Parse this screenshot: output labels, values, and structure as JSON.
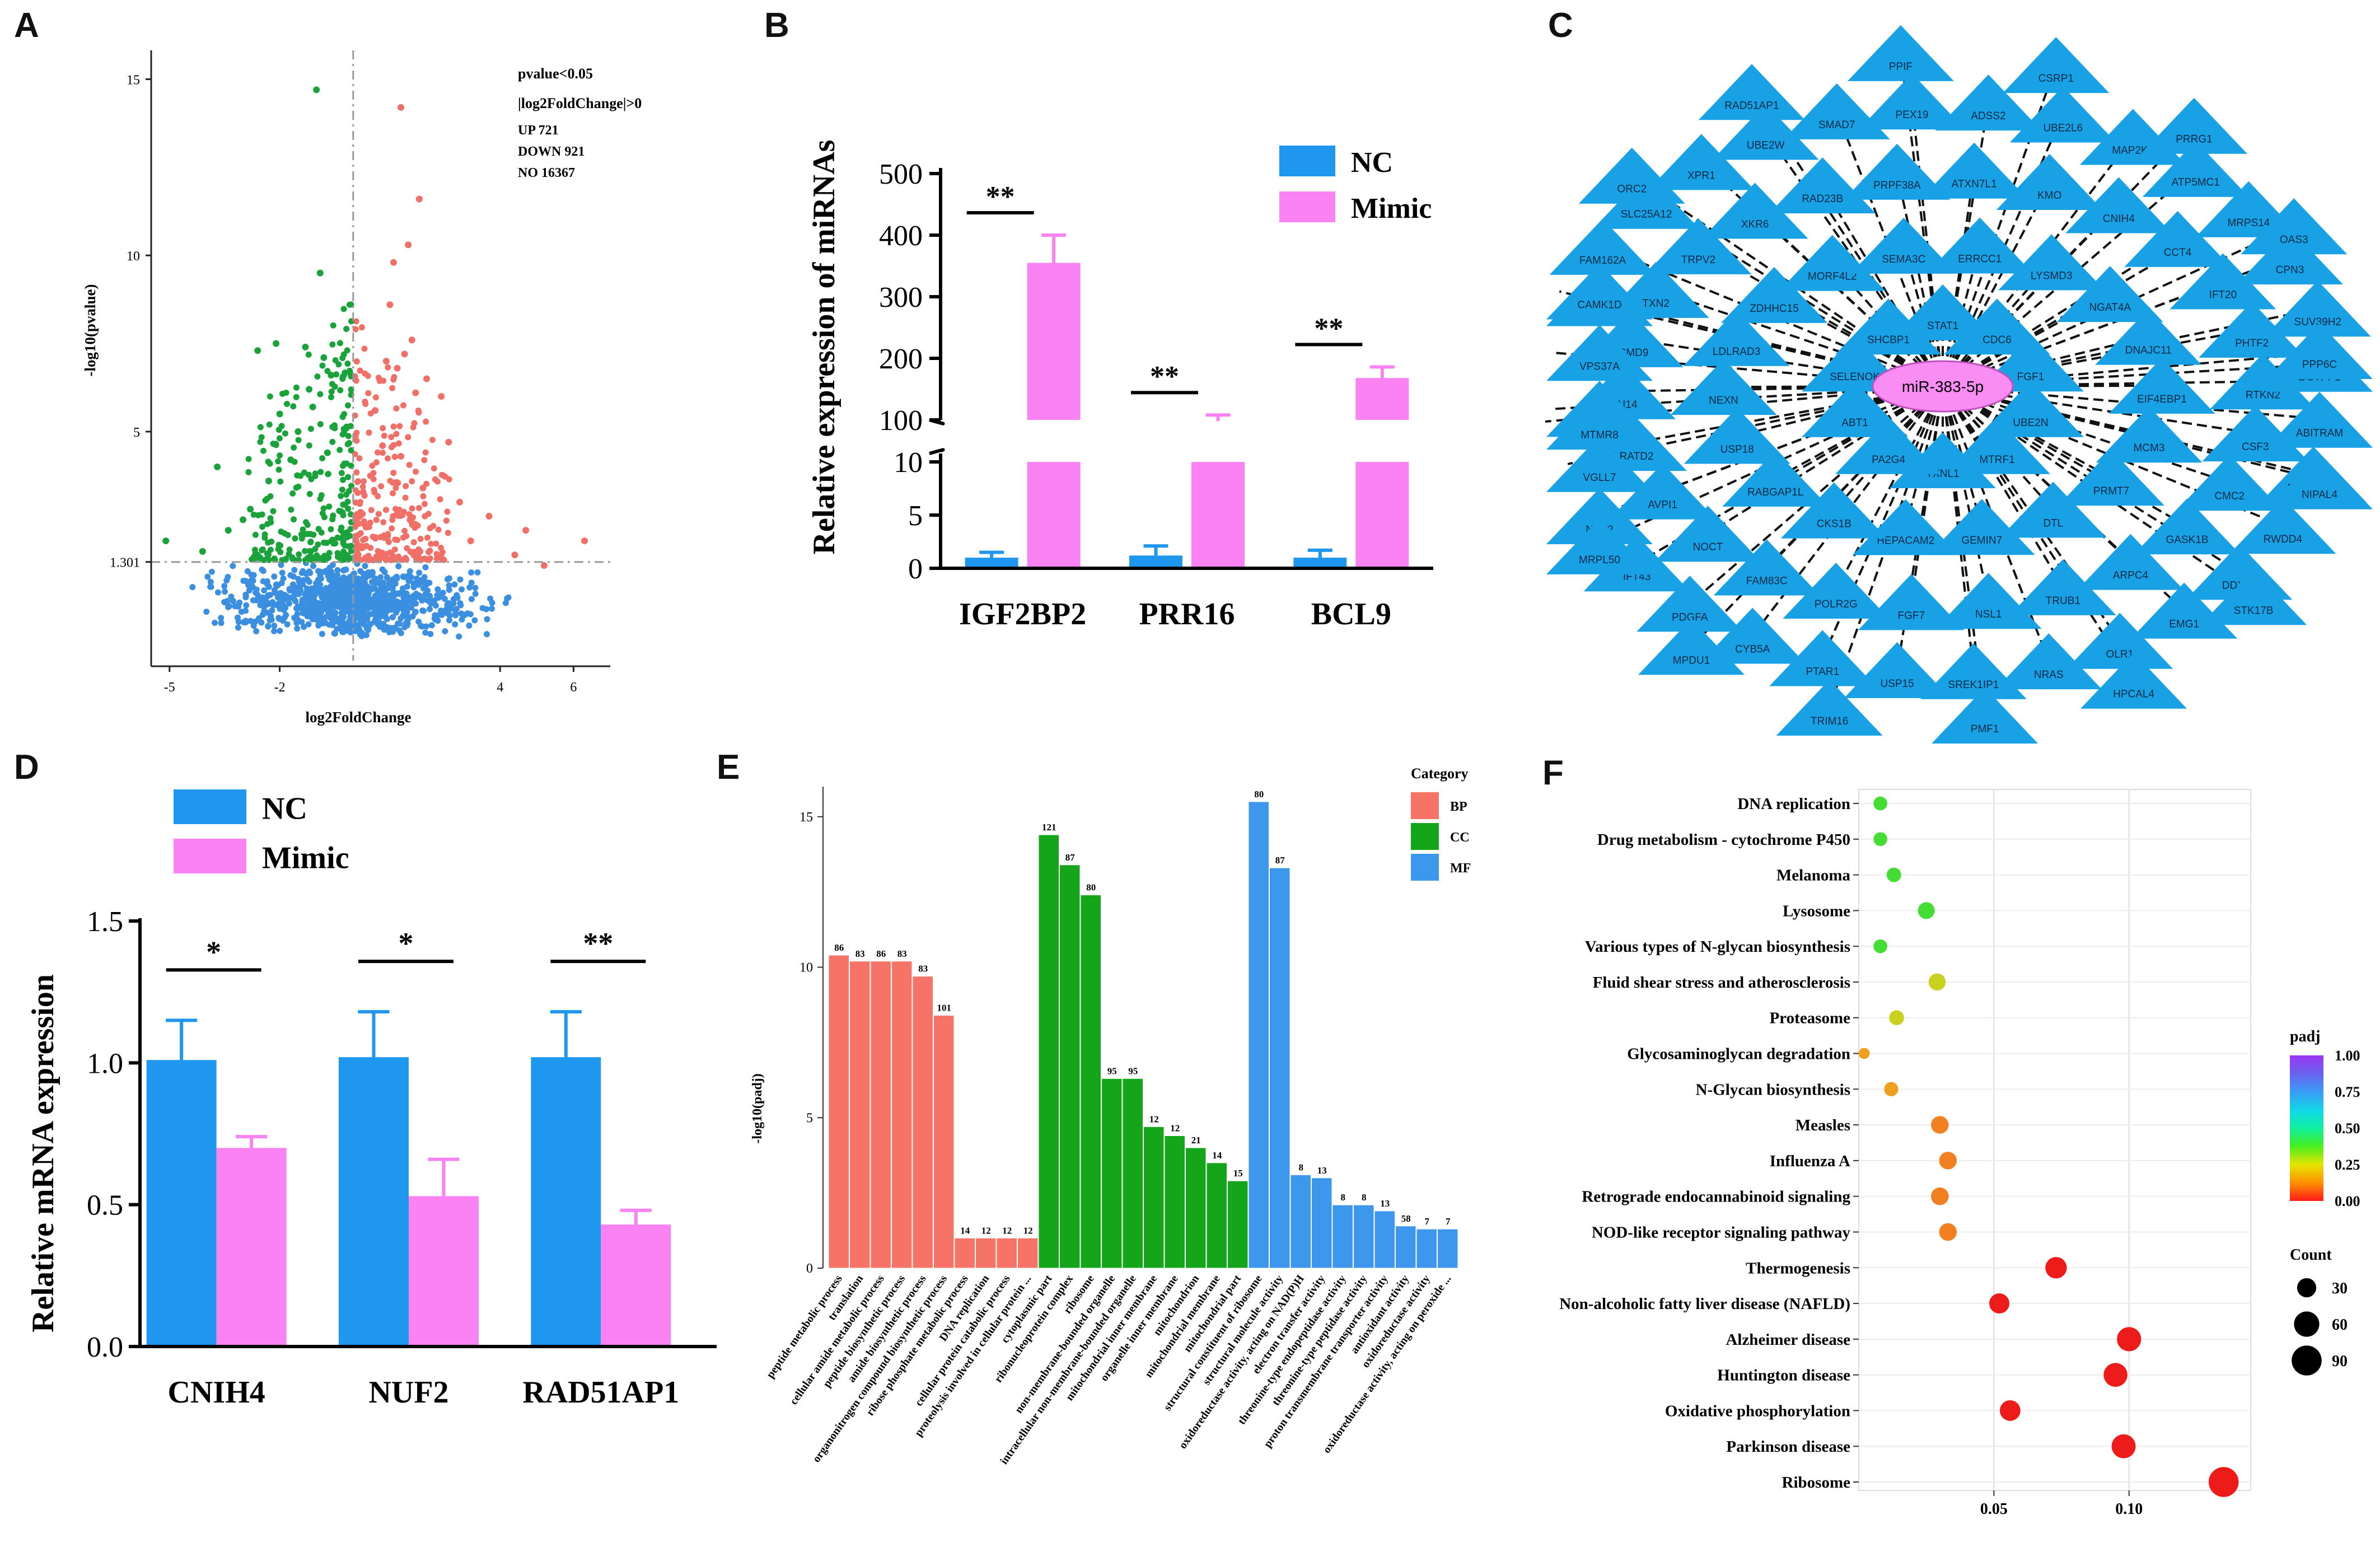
{
  "panels": {
    "a": "A",
    "b": "B",
    "c": "C",
    "d": "D",
    "e": "E",
    "f": "F"
  },
  "chart_data": [
    {
      "id": "A",
      "type": "scatter",
      "title": "",
      "xlabel": "log2FoldChange",
      "ylabel": "-log10(pvalue)",
      "xlim": [
        -5.5,
        7
      ],
      "ylim": [
        -1.5,
        15.5
      ],
      "xticks": [
        "-5",
        "-2",
        "4",
        "6"
      ],
      "xtick_values": [
        -5,
        -2,
        4,
        6
      ],
      "yticks": [
        "15",
        "10",
        "5",
        "1.301"
      ],
      "ytick_values": [
        15,
        10,
        5,
        1.301
      ],
      "thresholds": {
        "pvalue": 1.301,
        "log2fc": 0
      },
      "annotations": [
        "pvalue<0.05",
        "|log2FoldChange|>0",
        "UP 721",
        "DOWN 921",
        "NO 16367"
      ],
      "colors": {
        "up": "#f07068",
        "down": "#1aa33a",
        "no": "#3b8fe0"
      },
      "series": [
        {
          "name": "UP",
          "color": "#f07068",
          "points": [
            [
              1.3,
              14.2
            ],
            [
              1.8,
              11.6
            ],
            [
              1.1,
              9.8
            ],
            [
              1.5,
              10.3
            ],
            [
              1.6,
              7.6
            ],
            [
              1.4,
              7.2
            ],
            [
              1.2,
              6.8
            ],
            [
              2.0,
              6.5
            ],
            [
              2.4,
              6.0
            ],
            [
              2.6,
              4.7
            ],
            [
              1.0,
              8.6
            ],
            [
              0.9,
              7.0
            ],
            [
              1.7,
              6.1
            ],
            [
              3.7,
              2.6
            ],
            [
              4.4,
              1.5
            ],
            [
              4.7,
              2.2
            ],
            [
              5.2,
              1.2
            ],
            [
              6.3,
              1.9
            ],
            [
              2.9,
              3.0
            ],
            [
              3.2,
              1.9
            ],
            [
              0.6,
              5.6
            ],
            [
              0.8,
              4.6
            ],
            [
              1.3,
              4.3
            ],
            [
              1.9,
              3.4
            ]
          ]
        },
        {
          "name": "DOWN",
          "color": "#1aa33a",
          "points": [
            [
              -1.0,
              14.7
            ],
            [
              -0.9,
              9.5
            ],
            [
              -1.3,
              7.4
            ],
            [
              -2.6,
              7.3
            ],
            [
              -2.0,
              5.5
            ],
            [
              -3.7,
              4.0
            ],
            [
              -3.4,
              2.2
            ],
            [
              -5.1,
              1.9
            ],
            [
              -4.1,
              1.6
            ],
            [
              -0.8,
              7.1
            ],
            [
              -1.2,
              6.2
            ],
            [
              -1.5,
              5.0
            ],
            [
              -2.3,
              3.6
            ],
            [
              -2.8,
              2.8
            ],
            [
              -1.7,
              4.2
            ],
            [
              -0.6,
              6.6
            ],
            [
              -2.1,
              7.5
            ],
            [
              -1.1,
              5.7
            ],
            [
              -0.7,
              4.4
            ],
            [
              -3.0,
              2.5
            ]
          ]
        }
      ]
    },
    {
      "id": "B",
      "type": "bar",
      "title": "",
      "xlabel": "",
      "ylabel": "Relative expression of miRNAs",
      "categories": [
        "IGF2BP2",
        "PRR16",
        "BCL9"
      ],
      "series": [
        {
          "name": "NC",
          "color": "#1f97ee",
          "values": [
            1.0,
            1.2,
            1.0
          ],
          "errors": [
            0.5,
            0.9,
            0.7
          ]
        },
        {
          "name": "Mimic",
          "color": "#fb82f3",
          "values": [
            355,
            98,
            168
          ],
          "errors": [
            45,
            10,
            18
          ]
        }
      ],
      "broken_axis": {
        "lower": [
          0,
          10
        ],
        "upper": [
          100,
          500
        ]
      },
      "yticks_lower": [
        "0",
        "5",
        "10"
      ],
      "yticks_upper": [
        "100",
        "200",
        "300",
        "400",
        "500"
      ],
      "significance": [
        "**",
        "**",
        "**"
      ]
    },
    {
      "id": "C",
      "type": "network",
      "center": "miR-383-5p",
      "nodes": [
        "STAT1",
        "CDC6",
        "FGF1",
        "UBE2N",
        "MTRF1",
        "TXNL1",
        "PA2G4",
        "ABT1",
        "SELENOK",
        "SHCBP1",
        "ERRCC1",
        "LYSMD3",
        "NGAT4A",
        "DNAJC11",
        "EIF4EBP1",
        "MCM3",
        "PRMT7",
        "DTL",
        "GEMIN7",
        "HEPACAM2",
        "CKS1B",
        "RABGAP1L",
        "USP18",
        "NEXN",
        "LDLRAD3",
        "ZDHHC15",
        "MORF4L2",
        "SEMA3C",
        "KMO",
        "CNIH4",
        "CCT4",
        "IFT20",
        "PHTF2",
        "RTKN2",
        "CSF3",
        "CMC2",
        "GASK1B",
        "ARPC4",
        "TRUB1",
        "NSL1",
        "FGF7",
        "POLR2G",
        "FAM83C",
        "NOCT",
        "AVPI1",
        "LRATD2",
        "RAI14",
        "PSMD9",
        "TXN2",
        "TRPV2",
        "XKR6",
        "RAD23B",
        "PRPF38A",
        "ATXN7L1",
        "MAP2K4",
        "ATP5MC1",
        "MRPS14",
        "CPN3",
        "SUV39H2",
        "DCTPP1",
        "ABITRAM",
        "RABGGTB",
        "RWDD4",
        "DDX58",
        "EMG1",
        "OLR1",
        "NRAS",
        "SREK1IP1",
        "USP15",
        "PTAR1",
        "CYB5A",
        "PDGFA",
        "IFT43",
        "NUF2",
        "VGLL7",
        "RPF2",
        "VPS37A",
        "HSPA13",
        "FAM162A",
        "SLC25A12",
        "XPR1",
        "UBE2W",
        "SMAD7",
        "PEX19",
        "ADSS2",
        "UBE2L6",
        "PRRG1",
        "OAS3",
        "PPP6C",
        "NIPAL4",
        "STK17B",
        "HPCAL4",
        "PMF1",
        "TRIM16",
        "MPDU1",
        "MRPL50",
        "MTMR8",
        "CAMK1D",
        "ORC2",
        "RAD51AP1",
        "PPIF",
        "CSRP1"
      ]
    },
    {
      "id": "D",
      "type": "bar",
      "title": "",
      "xlabel": "",
      "ylabel": "Relative mRNA expression",
      "categories": [
        "CNIH4",
        "NUF2",
        "RAD51AP1"
      ],
      "series": [
        {
          "name": "NC",
          "color": "#1f97ee",
          "values": [
            1.01,
            1.02,
            1.02
          ],
          "errors": [
            0.14,
            0.16,
            0.16
          ]
        },
        {
          "name": "Mimic",
          "color": "#fb82f3",
          "values": [
            0.7,
            0.53,
            0.43
          ],
          "errors": [
            0.04,
            0.13,
            0.05
          ]
        }
      ],
      "ylim": [
        0,
        1.5
      ],
      "yticks": [
        "0.0",
        "0.5",
        "1.0",
        "1.5"
      ],
      "significance": [
        "*",
        "*",
        "**"
      ]
    },
    {
      "id": "E",
      "type": "bar",
      "title": "",
      "xlabel": "",
      "ylabel": "-log10(padj)",
      "ylim": [
        0,
        16
      ],
      "yticks": [
        "0",
        "5",
        "10",
        "15"
      ],
      "legend_title": "Category",
      "legend": [
        {
          "name": "BP",
          "color": "#f57467"
        },
        {
          "name": "CC",
          "color": "#14a51b"
        },
        {
          "name": "MF",
          "color": "#3d97ec"
        }
      ],
      "bars": [
        {
          "label": "peptide metabolic process",
          "category": "BP",
          "value": 10.4,
          "count": "86"
        },
        {
          "label": "translation",
          "category": "BP",
          "value": 10.2,
          "count": "83"
        },
        {
          "label": "cellular amide metabolic process",
          "category": "BP",
          "value": 10.2,
          "count": "86"
        },
        {
          "label": "peptide biosynthetic process",
          "category": "BP",
          "value": 10.2,
          "count": "83"
        },
        {
          "label": "amide biosynthetic process",
          "category": "BP",
          "value": 9.7,
          "count": "83"
        },
        {
          "label": "organonitrogen compound biosynthetic process",
          "category": "BP",
          "value": 8.4,
          "count": "101"
        },
        {
          "label": "ribose phosphate metabolic process",
          "category": "BP",
          "value": 1.0,
          "count": "14"
        },
        {
          "label": "DNA replication",
          "category": "BP",
          "value": 1.0,
          "count": "12"
        },
        {
          "label": "cellular protein catabolic process",
          "category": "BP",
          "value": 1.0,
          "count": "12"
        },
        {
          "label": "proteolysis involved in cellular protein ...",
          "category": "BP",
          "value": 1.0,
          "count": "12"
        },
        {
          "label": "cytoplasmic part",
          "category": "CC",
          "value": 14.4,
          "count": "121"
        },
        {
          "label": "ribonucleoprotein complex",
          "category": "CC",
          "value": 13.4,
          "count": "87"
        },
        {
          "label": "ribosome",
          "category": "CC",
          "value": 12.4,
          "count": "80"
        },
        {
          "label": "non-membrane-bounded organelle",
          "category": "CC",
          "value": 6.3,
          "count": "95"
        },
        {
          "label": "intracellular non-membrane-bounded organelle",
          "category": "CC",
          "value": 6.3,
          "count": "95"
        },
        {
          "label": "mitochondrial inner membrane",
          "category": "CC",
          "value": 4.7,
          "count": "12"
        },
        {
          "label": "organelle inner membrane",
          "category": "CC",
          "value": 4.4,
          "count": "12"
        },
        {
          "label": "mitochondrion",
          "category": "CC",
          "value": 4.0,
          "count": "21"
        },
        {
          "label": "mitochondrial membrane",
          "category": "CC",
          "value": 3.5,
          "count": "14"
        },
        {
          "label": "mitochondrial part",
          "category": "CC",
          "value": 2.9,
          "count": "15"
        },
        {
          "label": "structural constituent of ribosome",
          "category": "MF",
          "value": 15.5,
          "count": "80"
        },
        {
          "label": "structural molecule activity",
          "category": "MF",
          "value": 13.3,
          "count": "87"
        },
        {
          "label": "oxidoreductase activity, acting on NAD(P)H",
          "category": "MF",
          "value": 3.1,
          "count": "8"
        },
        {
          "label": "electron transfer activity",
          "category": "MF",
          "value": 3.0,
          "count": "13"
        },
        {
          "label": "threonine-type endopeptidase activity",
          "category": "MF",
          "value": 2.1,
          "count": "8"
        },
        {
          "label": "threonine-type peptidase activity",
          "category": "MF",
          "value": 2.1,
          "count": "8"
        },
        {
          "label": "proton transmembrane transporter activity",
          "category": "MF",
          "value": 1.9,
          "count": "13"
        },
        {
          "label": "antioxidant activity",
          "category": "MF",
          "value": 1.4,
          "count": "58"
        },
        {
          "label": "oxidoreductase activity",
          "category": "MF",
          "value": 1.3,
          "count": "7"
        },
        {
          "label": "oxidoreductase activity, acting on peroxide ...",
          "category": "MF",
          "value": 1.3,
          "count": "7"
        }
      ]
    },
    {
      "id": "F",
      "type": "scatter",
      "title": "",
      "xlabel": "",
      "ylabel": "",
      "xlim": [
        0,
        0.145
      ],
      "xticks": [
        "0.05",
        "0.10"
      ],
      "xtick_values": [
        0.05,
        0.1
      ],
      "legend_color_title": "padj",
      "color_ticks": [
        "1.00",
        "0.75",
        "0.50",
        "0.25",
        "0.00"
      ],
      "legend_size_title": "Count",
      "size_ticks": [
        "30",
        "60",
        "90"
      ],
      "points": [
        {
          "term": "DNA replication",
          "x": 0.008,
          "padj": 0.45,
          "count": 12
        },
        {
          "term": "Drug metabolism - cytochrome P450",
          "x": 0.008,
          "padj": 0.45,
          "count": 12
        },
        {
          "term": "Melanoma",
          "x": 0.013,
          "padj": 0.42,
          "count": 14
        },
        {
          "term": "Lysosome",
          "x": 0.025,
          "padj": 0.4,
          "count": 21
        },
        {
          "term": "Various types of N-glycan biosynthesis",
          "x": 0.008,
          "padj": 0.45,
          "count": 12
        },
        {
          "term": "Fluid shear stress and atherosclerosis",
          "x": 0.029,
          "padj": 0.27,
          "count": 22
        },
        {
          "term": "Proteasome",
          "x": 0.014,
          "padj": 0.25,
          "count": 15
        },
        {
          "term": "Glycosaminoglycan degradation",
          "x": 0.002,
          "padj": 0.2,
          "count": 6
        },
        {
          "term": "N-Glycan biosynthesis",
          "x": 0.012,
          "padj": 0.15,
          "count": 13
        },
        {
          "term": "Measles",
          "x": 0.03,
          "padj": 0.13,
          "count": 24
        },
        {
          "term": "Influenza A",
          "x": 0.033,
          "padj": 0.12,
          "count": 24
        },
        {
          "term": "Retrograde endocannabinoid signaling",
          "x": 0.03,
          "padj": 0.12,
          "count": 24
        },
        {
          "term": "NOD-like receptor signaling pathway",
          "x": 0.033,
          "padj": 0.12,
          "count": 24
        },
        {
          "term": "Thermogenesis",
          "x": 0.073,
          "padj": 0.01,
          "count": 40
        },
        {
          "term": "Non-alcoholic fatty liver disease (NAFLD)",
          "x": 0.052,
          "padj": 0.01,
          "count": 34
        },
        {
          "term": "Alzheimer disease",
          "x": 0.1,
          "padj": 0.01,
          "count": 54
        },
        {
          "term": "Huntington disease",
          "x": 0.095,
          "padj": 0.01,
          "count": 52
        },
        {
          "term": "Oxidative phosphorylation",
          "x": 0.056,
          "padj": 0.01,
          "count": 36
        },
        {
          "term": "Parkinson disease",
          "x": 0.098,
          "padj": 0.01,
          "count": 53
        },
        {
          "term": "Ribosome",
          "x": 0.135,
          "padj": 0.005,
          "count": 90
        }
      ]
    }
  ]
}
